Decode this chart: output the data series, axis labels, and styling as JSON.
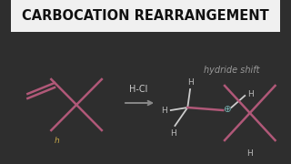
{
  "bg_color": "#2e2e2e",
  "title": "CARBOCATION REARRANGEMENT",
  "title_color": "#ffffff",
  "title_fontsize": 10.5,
  "title_weight": "bold",
  "hydride_shift_text": "hydride shift",
  "hydride_shift_color": "#999999",
  "hcl_text": "H-Cl",
  "pink": "#b05878",
  "white": "#cccccc",
  "cyan": "#7ab8b8",
  "h_color": "#bbbbbb",
  "arrow_color": "#888888",
  "gold": "#c8a84a"
}
